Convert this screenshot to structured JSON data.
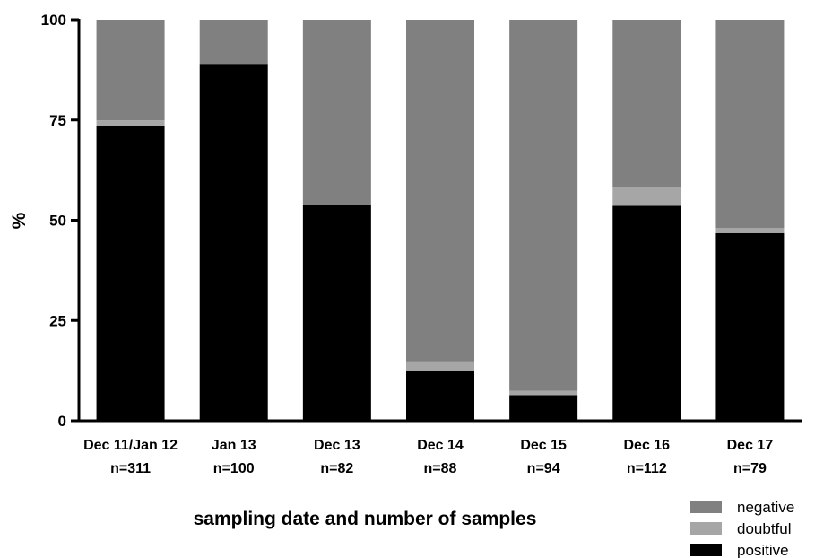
{
  "chart_data": {
    "type": "bar",
    "stacked": true,
    "title": "",
    "xlabel": "sampling date and number of samples",
    "ylabel": "%",
    "ylim": [
      0,
      100
    ],
    "yticks": [
      0,
      25,
      50,
      75,
      100
    ],
    "grid": false,
    "legend_position": "bottom-right",
    "categories": [
      {
        "date": "Dec 11/Jan 12",
        "n": "n=311"
      },
      {
        "date": "Jan 13",
        "n": "n=100"
      },
      {
        "date": "Dec 13",
        "n": "n=82"
      },
      {
        "date": "Dec 14",
        "n": "n=88"
      },
      {
        "date": "Dec 15",
        "n": "n=94"
      },
      {
        "date": "Dec 16",
        "n": "n=112"
      },
      {
        "date": "Dec 17",
        "n": "n=79"
      }
    ],
    "series": [
      {
        "name": "positive",
        "color": "#000000",
        "values": [
          73.6,
          89.0,
          53.7,
          12.5,
          6.4,
          53.6,
          46.8
        ]
      },
      {
        "name": "doubtful",
        "color": "#a6a6a6",
        "values": [
          1.3,
          0.0,
          0.0,
          2.3,
          1.1,
          4.5,
          1.3
        ]
      },
      {
        "name": "negative",
        "color": "#808080",
        "values": [
          25.1,
          11.0,
          46.3,
          85.2,
          92.5,
          41.9,
          51.9
        ]
      }
    ],
    "legend_order": [
      "negative",
      "doubtful",
      "positive"
    ]
  }
}
